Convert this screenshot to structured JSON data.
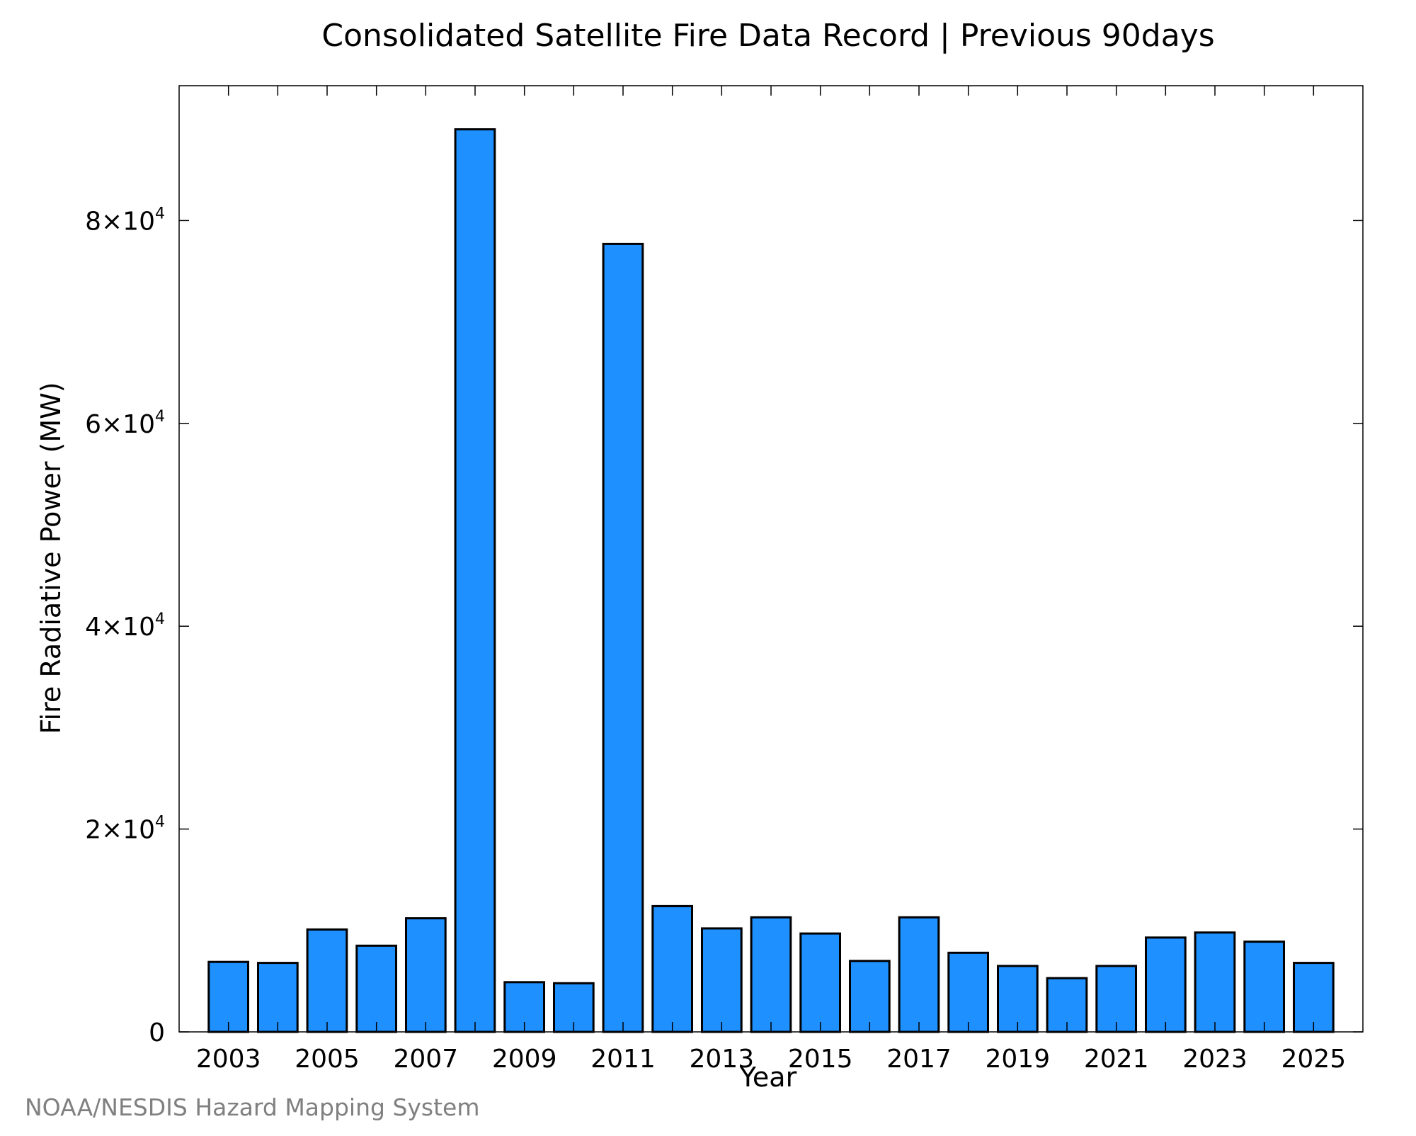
{
  "chart_data": {
    "type": "bar",
    "title": "Consolidated Satellite Fire Data Record | Previous 90days",
    "xlabel": "Year",
    "ylabel": "Fire Radiative Power (MW)",
    "categories": [
      "2003",
      "2004",
      "2005",
      "2006",
      "2007",
      "2008",
      "2009",
      "2010",
      "2011",
      "2012",
      "2013",
      "2014",
      "2015",
      "2016",
      "2017",
      "2018",
      "2019",
      "2020",
      "2021",
      "2022",
      "2023",
      "2024",
      "2025"
    ],
    "values": [
      6900,
      6800,
      10100,
      8500,
      11200,
      89000,
      4900,
      4800,
      77700,
      12400,
      10200,
      11300,
      9700,
      7000,
      11300,
      7800,
      6500,
      5300,
      6500,
      9300,
      9800,
      8900,
      6800
    ],
    "x_tick_labels": [
      "2003",
      "2005",
      "2007",
      "2009",
      "2011",
      "2013",
      "2015",
      "2017",
      "2019",
      "2021",
      "2023",
      "2025"
    ],
    "y_ticks": [
      {
        "value": 0,
        "mantissa": "0",
        "exponent": ""
      },
      {
        "value": 20000,
        "mantissa": "2×10",
        "exponent": "4"
      },
      {
        "value": 40000,
        "mantissa": "4×10",
        "exponent": "4"
      },
      {
        "value": 60000,
        "mantissa": "6×10",
        "exponent": "4"
      },
      {
        "value": 80000,
        "mantissa": "8×10",
        "exponent": "4"
      }
    ],
    "ylim": [
      0,
      93300
    ],
    "xlim": [
      2002,
      2026
    ],
    "grid": false,
    "legend": "none",
    "bar_color": "#1e90ff",
    "bar_edge_color": "#000000"
  },
  "footer": {
    "credit": "NOAA/NESDIS Hazard Mapping System"
  }
}
